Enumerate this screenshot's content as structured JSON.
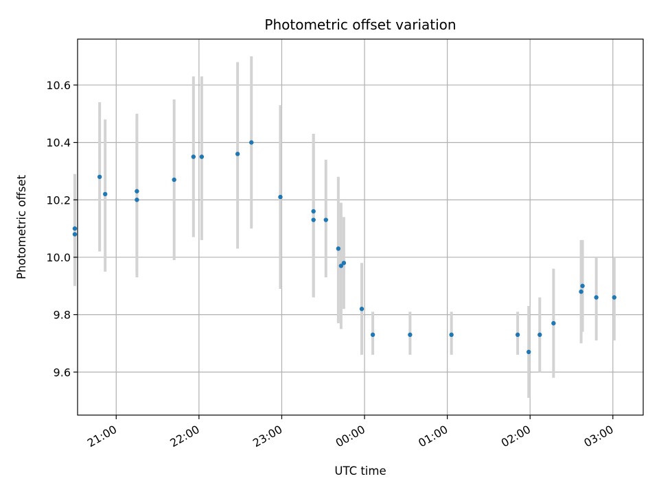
{
  "chart_data": {
    "type": "scatter",
    "title": "Photometric offset variation",
    "xlabel": "UTC time",
    "ylabel": "Photometric offset",
    "grid": true,
    "legend": "none",
    "xlim": [
      "20:32",
      "03:22"
    ],
    "ylim": [
      9.45,
      10.76
    ],
    "x_ticks": [
      "21:00",
      "22:00",
      "23:00",
      "00:00",
      "01:00",
      "02:00",
      "03:00"
    ],
    "y_ticks": [
      "9.6",
      "9.8",
      "10.0",
      "10.2",
      "10.4",
      "10.6"
    ],
    "point_color": "#1f77b4",
    "errorbar_color": "#d3d3d3",
    "series": [
      {
        "x": [
          "20:30",
          "20:30",
          "20:48",
          "20:52",
          "21:15",
          "21:15",
          "21:42",
          "21:56",
          "22:02",
          "22:28",
          "22:38",
          "22:59",
          "23:23",
          "23:23",
          "23:32",
          "23:41",
          "23:43",
          "23:45",
          "23:58",
          "00:06",
          "00:33",
          "01:03",
          "01:51",
          "01:59",
          "02:07",
          "02:17",
          "02:37",
          "02:38",
          "02:48",
          "03:01"
        ],
        "y": [
          10.08,
          10.1,
          10.28,
          10.22,
          10.2,
          10.23,
          10.27,
          10.35,
          10.35,
          10.36,
          10.4,
          10.21,
          10.16,
          10.13,
          10.13,
          10.03,
          9.97,
          9.98,
          9.82,
          9.73,
          9.73,
          9.73,
          9.73,
          9.67,
          9.73,
          9.77,
          9.88,
          9.9,
          9.86,
          9.86
        ],
        "yerr_low": [
          9.9,
          9.92,
          10.02,
          9.95,
          9.93,
          9.95,
          9.99,
          10.07,
          10.06,
          10.03,
          10.1,
          9.89,
          9.86,
          9.86,
          9.93,
          9.77,
          9.75,
          9.82,
          9.66,
          9.66,
          9.66,
          9.66,
          9.66,
          9.51,
          9.6,
          9.58,
          9.7,
          9.74,
          9.71,
          9.71
        ],
        "yerr_high": [
          10.26,
          10.29,
          10.54,
          10.48,
          10.48,
          10.5,
          10.55,
          10.63,
          10.63,
          10.68,
          10.7,
          10.53,
          10.43,
          10.43,
          10.34,
          10.28,
          10.19,
          10.14,
          9.98,
          9.81,
          9.81,
          9.81,
          9.81,
          9.83,
          9.86,
          9.96,
          10.06,
          10.06,
          10.0,
          10.0
        ]
      }
    ]
  }
}
